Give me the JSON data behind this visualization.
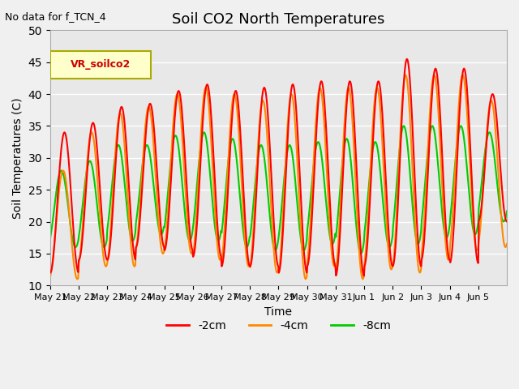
{
  "title": "Soil CO2 North Temperatures",
  "subtitle": "No data for f_TCN_4",
  "xlabel": "Time",
  "ylabel": "Soil Temperatures (C)",
  "legend_label": "VR_soilco2",
  "ylim": [
    10,
    50
  ],
  "yticks": [
    10,
    15,
    20,
    25,
    30,
    35,
    40,
    45,
    50
  ],
  "x_labels": [
    "May 21",
    "May 22",
    "May 23",
    "May 24",
    "May 25",
    "May 26",
    "May 27",
    "May 28",
    "May 29",
    "May 30",
    "May 31",
    "Jun 1",
    "Jun 2",
    "Jun 3",
    "Jun 4",
    "Jun 5"
  ],
  "color_2cm": "#ff0000",
  "color_4cm": "#ff8800",
  "color_8cm": "#00cc00",
  "line_width": 1.5,
  "bg_color": "#e8e8e8",
  "grid_color": "#ffffff"
}
